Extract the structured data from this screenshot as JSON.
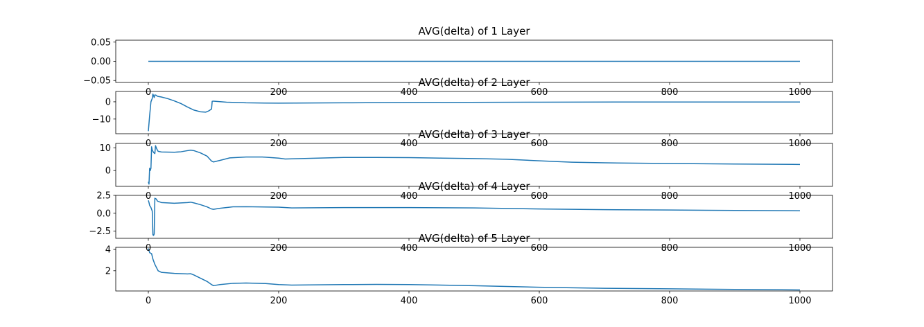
{
  "chart_data": [
    {
      "type": "line",
      "title": "AVG(delta) of 1 Layer",
      "xlim": [
        -50,
        1050
      ],
      "ylim": [
        -0.055,
        0.055
      ],
      "xticks": [
        0,
        200,
        400,
        600,
        800,
        1000
      ],
      "yticks": [
        0.05,
        0.0,
        -0.05
      ],
      "ytick_labels": [
        "0.05",
        "0.00",
        "−0.05"
      ],
      "series": [
        {
          "color": "#1f77b4",
          "points": [
            [
              0,
              0
            ],
            [
              1000,
              0
            ]
          ]
        }
      ]
    },
    {
      "type": "line",
      "title": "AVG(delta) of 2 Layer",
      "xlim": [
        -50,
        1050
      ],
      "ylim": [
        -18.5,
        6
      ],
      "xticks": [
        0,
        200,
        400,
        600,
        800,
        1000
      ],
      "yticks": [
        0,
        -10
      ],
      "ytick_labels": [
        "0",
        "−10"
      ],
      "series": [
        {
          "color": "#1f77b4",
          "points": [
            [
              0,
              -17
            ],
            [
              2,
              -8
            ],
            [
              4,
              0
            ],
            [
              6,
              2
            ],
            [
              7,
              4.5
            ],
            [
              8,
              3.5
            ],
            [
              9,
              2.5
            ],
            [
              10,
              4
            ],
            [
              12,
              3.8
            ],
            [
              14,
              3.2
            ],
            [
              20,
              2.8
            ],
            [
              30,
              1.8
            ],
            [
              40,
              0.5
            ],
            [
              50,
              -1
            ],
            [
              60,
              -3
            ],
            [
              70,
              -4.8
            ],
            [
              80,
              -5.8
            ],
            [
              88,
              -6
            ],
            [
              93,
              -5.2
            ],
            [
              97,
              -4.2
            ],
            [
              98,
              0.3
            ],
            [
              100,
              0.4
            ],
            [
              120,
              -0.2
            ],
            [
              150,
              -0.6
            ],
            [
              200,
              -0.8
            ],
            [
              300,
              -0.6
            ],
            [
              400,
              -0.4
            ],
            [
              600,
              -0.2
            ],
            [
              800,
              -0.1
            ],
            [
              1000,
              -0.1
            ]
          ]
        }
      ]
    },
    {
      "type": "line",
      "title": "AVG(delta) of 3 Layer",
      "xlim": [
        -50,
        1050
      ],
      "ylim": [
        -7,
        12
      ],
      "xticks": [
        0,
        200,
        400,
        600,
        800,
        1000
      ],
      "yticks": [
        10,
        0
      ],
      "ytick_labels": [
        "10",
        "0"
      ],
      "series": [
        {
          "color": "#1f77b4",
          "points": [
            [
              0,
              -5
            ],
            [
              1,
              -6
            ],
            [
              2,
              1
            ],
            [
              3,
              0
            ],
            [
              4,
              1
            ],
            [
              5,
              10.5
            ],
            [
              6,
              9
            ],
            [
              8,
              8
            ],
            [
              10,
              7.5
            ],
            [
              11,
              11
            ],
            [
              13,
              9.5
            ],
            [
              15,
              8.5
            ],
            [
              20,
              8.2
            ],
            [
              40,
              8.1
            ],
            [
              50,
              8.3
            ],
            [
              60,
              8.8
            ],
            [
              65,
              9
            ],
            [
              70,
              8.8
            ],
            [
              80,
              7.8
            ],
            [
              90,
              6.4
            ],
            [
              97,
              4.2
            ],
            [
              100,
              3.8
            ],
            [
              110,
              4.5
            ],
            [
              125,
              5.6
            ],
            [
              150,
              6
            ],
            [
              175,
              6
            ],
            [
              200,
              5.5
            ],
            [
              210,
              5.1
            ],
            [
              220,
              5.2
            ],
            [
              260,
              5.5
            ],
            [
              300,
              5.8
            ],
            [
              350,
              5.8
            ],
            [
              400,
              5.7
            ],
            [
              450,
              5.5
            ],
            [
              500,
              5.3
            ],
            [
              550,
              5
            ],
            [
              600,
              4.3
            ],
            [
              650,
              3.7
            ],
            [
              700,
              3.4
            ],
            [
              800,
              3.1
            ],
            [
              900,
              2.9
            ],
            [
              1000,
              2.7
            ]
          ]
        }
      ]
    },
    {
      "type": "line",
      "title": "AVG(delta) of 4 Layer",
      "xlim": [
        -50,
        1050
      ],
      "ylim": [
        -3.5,
        2.5
      ],
      "xticks": [
        0,
        200,
        400,
        600,
        800,
        1000
      ],
      "yticks": [
        2.5,
        0.0,
        -2.5
      ],
      "ytick_labels": [
        "2.5",
        "0.0",
        "−2.5"
      ],
      "series": [
        {
          "color": "#1f77b4",
          "points": [
            [
              0,
              1.8
            ],
            [
              1,
              1.5
            ],
            [
              2,
              1.1
            ],
            [
              4,
              0.8
            ],
            [
              6,
              0.3
            ],
            [
              7,
              -3
            ],
            [
              8,
              -3.1
            ],
            [
              9,
              -2.9
            ],
            [
              10,
              2.1
            ],
            [
              12,
              2
            ],
            [
              14,
              1.7
            ],
            [
              20,
              1.5
            ],
            [
              40,
              1.4
            ],
            [
              60,
              1.5
            ],
            [
              65,
              1.55
            ],
            [
              70,
              1.45
            ],
            [
              80,
              1.2
            ],
            [
              90,
              0.9
            ],
            [
              97,
              0.6
            ],
            [
              100,
              0.55
            ],
            [
              110,
              0.7
            ],
            [
              130,
              0.9
            ],
            [
              150,
              0.92
            ],
            [
              200,
              0.85
            ],
            [
              220,
              0.75
            ],
            [
              300,
              0.8
            ],
            [
              400,
              0.8
            ],
            [
              500,
              0.75
            ],
            [
              600,
              0.6
            ],
            [
              700,
              0.5
            ],
            [
              800,
              0.45
            ],
            [
              900,
              0.4
            ],
            [
              1000,
              0.35
            ]
          ]
        }
      ]
    },
    {
      "type": "line",
      "title": "AVG(delta) of 5 Layer",
      "xlim": [
        -50,
        1050
      ],
      "ylim": [
        0.1,
        4.2
      ],
      "xticks": [
        0,
        200,
        400,
        600,
        800,
        1000
      ],
      "xtick_labels": [
        "0",
        "200",
        "400",
        "600",
        "800",
        "1000"
      ],
      "yticks": [
        4,
        2
      ],
      "ytick_labels": [
        "4",
        "2"
      ],
      "series": [
        {
          "color": "#1f77b4",
          "points": [
            [
              0,
              4.1
            ],
            [
              2,
              3.7
            ],
            [
              5,
              3.6
            ],
            [
              7,
              3.1
            ],
            [
              10,
              2.6
            ],
            [
              15,
              2
            ],
            [
              20,
              1.85
            ],
            [
              40,
              1.75
            ],
            [
              60,
              1.7
            ],
            [
              65,
              1.72
            ],
            [
              70,
              1.6
            ],
            [
              80,
              1.3
            ],
            [
              90,
              1
            ],
            [
              97,
              0.7
            ],
            [
              100,
              0.6
            ],
            [
              110,
              0.7
            ],
            [
              130,
              0.82
            ],
            [
              150,
              0.85
            ],
            [
              180,
              0.8
            ],
            [
              200,
              0.7
            ],
            [
              220,
              0.65
            ],
            [
              300,
              0.7
            ],
            [
              350,
              0.72
            ],
            [
              400,
              0.7
            ],
            [
              500,
              0.6
            ],
            [
              600,
              0.45
            ],
            [
              700,
              0.35
            ],
            [
              800,
              0.3
            ],
            [
              900,
              0.25
            ],
            [
              1000,
              0.2
            ]
          ]
        }
      ]
    }
  ]
}
